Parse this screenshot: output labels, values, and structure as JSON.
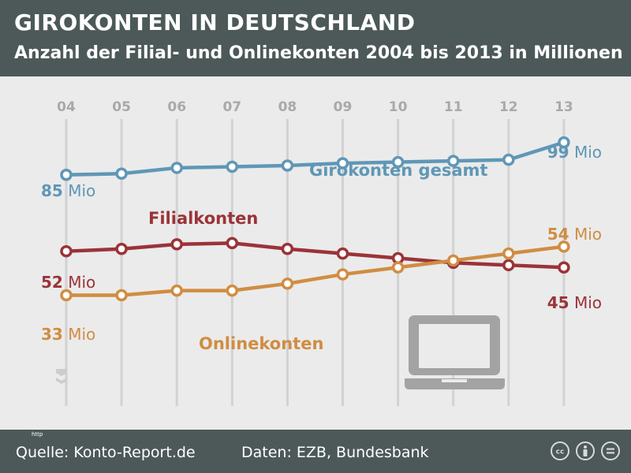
{
  "header": {
    "title": "GIROKONTEN IN DEUTSCHLAND",
    "subtitle": "Anzahl der Filial- und Onlinekonten 2004 bis 2013 in Millionen"
  },
  "footer": {
    "http_label": "http",
    "source": "Quelle: Konto-Report.de",
    "data_source": "Daten: EZB, Bundesbank",
    "license_icons": [
      "cc-icon",
      "by-attribution-icon",
      "no-derivatives-icon"
    ]
  },
  "chart_data": {
    "type": "line",
    "categories": [
      "04",
      "05",
      "06",
      "07",
      "08",
      "09",
      "10",
      "11",
      "12",
      "13"
    ],
    "series": [
      {
        "name": "Girokonten gesamt",
        "color": "#5f97b6",
        "values": [
          85,
          85.5,
          88,
          88.5,
          89,
          90,
          90.5,
          91,
          91.5,
          99
        ],
        "start_label": {
          "value": "85",
          "unit": " Mio"
        },
        "end_label": {
          "value": "99",
          "unit": " Mio"
        }
      },
      {
        "name": "Filialkonten",
        "color": "#9b3338",
        "values": [
          52,
          53,
          55,
          55.5,
          53,
          51,
          49,
          47,
          46,
          45
        ],
        "start_label": {
          "value": "52",
          "unit": " Mio"
        },
        "end_label": {
          "value": "45",
          "unit": " Mio"
        }
      },
      {
        "name": "Onlinekonten",
        "color": "#d08d42",
        "values": [
          33,
          33,
          35,
          35,
          38,
          42,
          45,
          48,
          51,
          54
        ],
        "start_label": {
          "value": "33",
          "unit": " Mio"
        },
        "end_label": {
          "value": "54",
          "unit": " Mio"
        }
      }
    ],
    "xlabel": "",
    "ylabel": "",
    "ylim": [
      25,
      105
    ],
    "grid": "vertical",
    "colors": {
      "grid": "#d2d2d2",
      "tick_label": "#a9a9a9",
      "icon": "#a3a3a3",
      "marker_fill": "#ffffff"
    }
  }
}
